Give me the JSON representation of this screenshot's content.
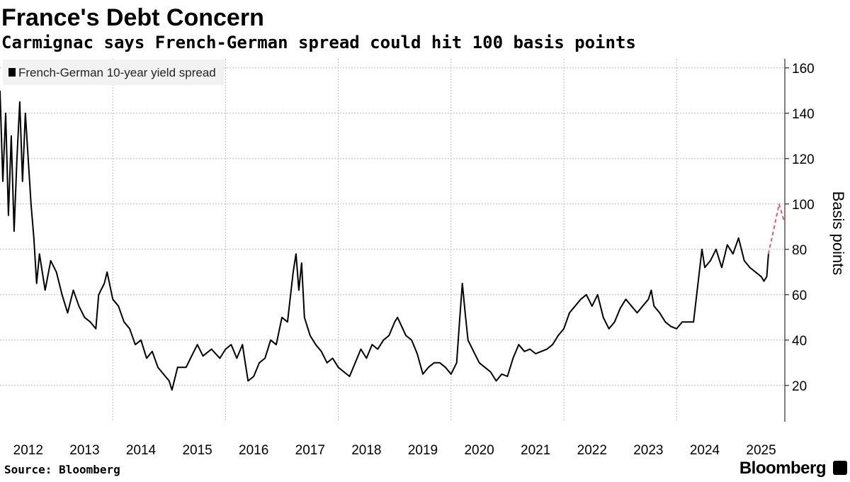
{
  "chart_data": {
    "type": "line",
    "title": "France's Debt Concern",
    "subtitle": "Carmignac says French-German spread could hit 100 basis points",
    "y_label": "Basis points",
    "source": "Source: Bloomberg",
    "brand": "Bloomberg",
    "xlim": [
      2012,
      2025.92
    ],
    "ylim": [
      4,
      164
    ],
    "yticks": [
      20,
      40,
      60,
      80,
      100,
      120,
      140,
      160
    ],
    "xticks": [
      {
        "value": 2012.5,
        "label": "2012"
      },
      {
        "value": 2013.5,
        "label": "2013"
      },
      {
        "value": 2014.5,
        "label": "2014"
      },
      {
        "value": 2015.5,
        "label": "2015"
      },
      {
        "value": 2016.5,
        "label": "2016"
      },
      {
        "value": 2017.5,
        "label": "2017"
      },
      {
        "value": 2018.5,
        "label": "2018"
      },
      {
        "value": 2019.5,
        "label": "2019"
      },
      {
        "value": 2020.5,
        "label": "2020"
      },
      {
        "value": 2021.5,
        "label": "2021"
      },
      {
        "value": 2022.5,
        "label": "2022"
      },
      {
        "value": 2023.5,
        "label": "2023"
      },
      {
        "value": 2024.5,
        "label": "2024"
      },
      {
        "value": 2025.5,
        "label": "2025"
      }
    ],
    "xgrid": [
      2014,
      2016,
      2018,
      2020,
      2022,
      2024
    ],
    "grid": true,
    "legend": "top-left",
    "series": [
      {
        "name": "French-German 10-year yield spread",
        "color": "#000000",
        "x": [
          2012.0,
          2012.05,
          2012.1,
          2012.15,
          2012.2,
          2012.25,
          2012.3,
          2012.35,
          2012.4,
          2012.45,
          2012.5,
          2012.55,
          2012.6,
          2012.65,
          2012.7,
          2012.8,
          2012.9,
          2013.0,
          2013.1,
          2013.2,
          2013.3,
          2013.4,
          2013.5,
          2013.6,
          2013.7,
          2013.75,
          2013.85,
          2013.9,
          2014.0,
          2014.1,
          2014.2,
          2014.3,
          2014.4,
          2014.5,
          2014.6,
          2014.7,
          2014.8,
          2014.9,
          2015.0,
          2015.05,
          2015.15,
          2015.3,
          2015.4,
          2015.5,
          2015.6,
          2015.75,
          2015.9,
          2016.0,
          2016.1,
          2016.2,
          2016.3,
          2016.35,
          2016.4,
          2016.5,
          2016.6,
          2016.7,
          2016.8,
          2016.9,
          2017.0,
          2017.1,
          2017.2,
          2017.25,
          2017.3,
          2017.35,
          2017.4,
          2017.5,
          2017.6,
          2017.7,
          2017.8,
          2017.9,
          2018.0,
          2018.1,
          2018.2,
          2018.3,
          2018.4,
          2018.5,
          2018.6,
          2018.7,
          2018.8,
          2018.9,
          2019.0,
          2019.05,
          2019.2,
          2019.3,
          2019.4,
          2019.5,
          2019.6,
          2019.7,
          2019.8,
          2019.9,
          2020.0,
          2020.1,
          2020.15,
          2020.2,
          2020.25,
          2020.3,
          2020.4,
          2020.5,
          2020.6,
          2020.7,
          2020.8,
          2020.9,
          2021.0,
          2021.1,
          2021.2,
          2021.3,
          2021.4,
          2021.5,
          2021.6,
          2021.7,
          2021.8,
          2021.9,
          2022.0,
          2022.1,
          2022.2,
          2022.3,
          2022.4,
          2022.5,
          2022.6,
          2022.7,
          2022.8,
          2022.9,
          2023.0,
          2023.1,
          2023.2,
          2023.3,
          2023.4,
          2023.5,
          2023.55,
          2023.6,
          2023.7,
          2023.8,
          2023.9,
          2024.0,
          2024.1,
          2024.2,
          2024.3,
          2024.45,
          2024.5,
          2024.6,
          2024.7,
          2024.8,
          2024.9,
          2025.0,
          2025.1,
          2025.2,
          2025.3,
          2025.4,
          2025.5,
          2025.55,
          2025.6,
          2025.63
        ],
        "values": [
          150,
          110,
          140,
          95,
          130,
          88,
          120,
          145,
          110,
          140,
          120,
          100,
          85,
          65,
          78,
          62,
          75,
          70,
          60,
          52,
          62,
          55,
          50,
          48,
          45,
          60,
          65,
          70,
          58,
          55,
          48,
          45,
          38,
          40,
          32,
          35,
          28,
          25,
          22,
          18,
          28,
          28,
          33,
          38,
          33,
          36,
          32,
          36,
          38,
          32,
          38,
          30,
          22,
          24,
          30,
          32,
          40,
          38,
          50,
          48,
          70,
          78,
          62,
          74,
          50,
          42,
          38,
          35,
          30,
          32,
          28,
          26,
          24,
          30,
          36,
          32,
          38,
          36,
          40,
          42,
          48,
          50,
          42,
          40,
          34,
          25,
          28,
          30,
          30,
          28,
          25,
          30,
          48,
          65,
          52,
          40,
          35,
          30,
          28,
          26,
          22,
          25,
          24,
          32,
          38,
          35,
          36,
          34,
          35,
          36,
          38,
          42,
          45,
          52,
          55,
          58,
          60,
          55,
          60,
          50,
          45,
          48,
          54,
          58,
          55,
          52,
          55,
          58,
          62,
          55,
          52,
          48,
          46,
          45,
          48,
          48,
          48,
          80,
          72,
          75,
          80,
          72,
          82,
          78,
          85,
          75,
          72,
          70,
          68,
          66,
          68,
          78
        ]
      },
      {
        "color": "#e8546f",
        "dash": true,
        "x": [
          2025.63,
          2025.82,
          2025.9
        ],
        "values": [
          78,
          100,
          93
        ]
      }
    ]
  }
}
